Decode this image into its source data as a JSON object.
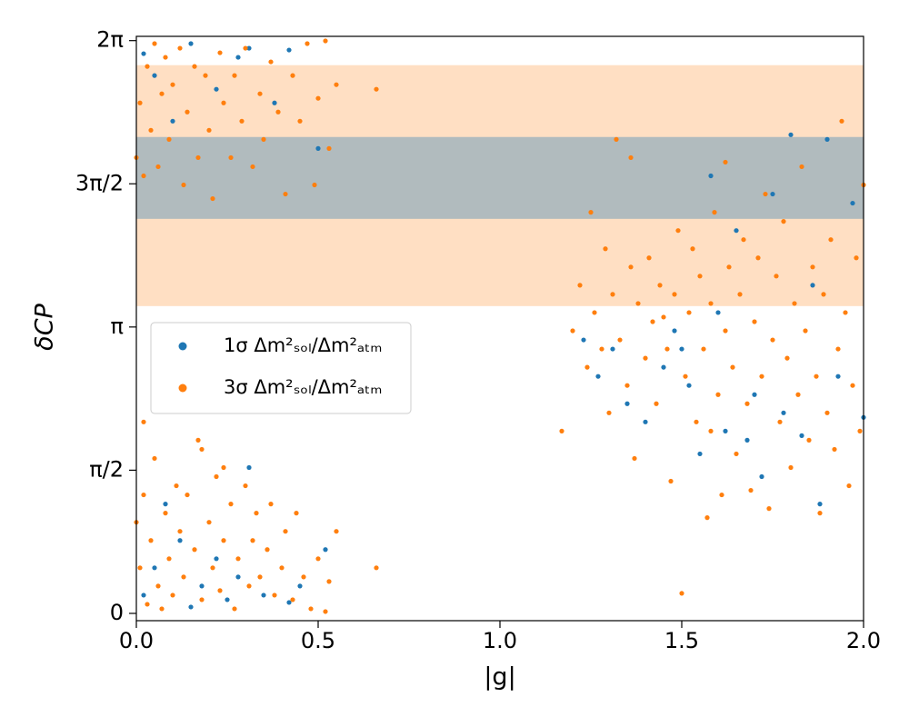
{
  "chart_data": {
    "type": "scatter",
    "xlabel": "|g|",
    "ylabel": "δCP",
    "xlim": [
      0,
      2
    ],
    "ylim": [
      -0.08,
      6.33
    ],
    "xticks": [
      {
        "value": 0,
        "label": "0.0"
      },
      0.5,
      {
        "value": 1,
        "label": "1.0"
      },
      1.5,
      {
        "value": 2,
        "label": "2.0"
      }
    ],
    "yticks": [
      0,
      {
        "value": 1.5708,
        "label": "π/2"
      },
      {
        "value": 3.1416,
        "label": "π"
      },
      {
        "value": 4.7124,
        "label": "3π/2"
      },
      {
        "value": 6.2832,
        "label": "2π"
      }
    ],
    "legend": "center left",
    "bands": [
      {
        "range": [
          3.371,
          6.014
        ],
        "color": "#ff7f0e",
        "alpha": 0.25
      },
      {
        "range": [
          4.328,
          5.226
        ],
        "color": "#1f77b4",
        "alpha": 0.35
      }
    ],
    "series": [
      {
        "name": "1σ Δm²ₛₒₗ/Δm²ₐₜₘ",
        "color": "#1f77b4",
        "x": [
          0.02,
          0.05,
          0.08,
          0.12,
          0.15,
          0.18,
          0.22,
          0.25,
          0.28,
          0.31,
          0.35,
          0.42,
          0.45,
          0.52,
          0.02,
          0.05,
          0.1,
          0.15,
          0.22,
          0.28,
          0.31,
          0.38,
          0.42,
          0.5,
          1.23,
          1.27,
          1.31,
          1.35,
          1.4,
          1.45,
          1.48,
          1.52,
          1.55,
          1.58,
          1.62,
          1.65,
          1.68,
          1.7,
          1.72,
          1.75,
          1.78,
          1.8,
          1.83,
          1.86,
          1.88,
          1.9,
          1.93,
          1.97,
          2.0,
          1.6,
          1.5
        ],
        "values": [
          0.2,
          0.5,
          1.2,
          0.8,
          0.07,
          0.3,
          0.6,
          0.15,
          0.4,
          1.6,
          0.2,
          0.12,
          0.3,
          0.7,
          6.14,
          5.9,
          5.4,
          6.25,
          5.75,
          6.1,
          6.2,
          5.6,
          6.18,
          5.1,
          3.0,
          2.6,
          2.9,
          2.3,
          2.1,
          2.7,
          3.1,
          2.5,
          1.75,
          4.8,
          2.0,
          4.2,
          1.9,
          2.4,
          1.5,
          4.6,
          2.2,
          5.25,
          1.95,
          3.6,
          1.2,
          5.2,
          2.6,
          4.5,
          2.15,
          3.3,
          2.9
        ]
      },
      {
        "name": "3σ Δm²ₛₒₗ/Δm²ₐₜₘ",
        "color": "#ff7f0e",
        "x": [
          0.0,
          0.01,
          0.02,
          0.03,
          0.04,
          0.05,
          0.06,
          0.07,
          0.08,
          0.09,
          0.1,
          0.11,
          0.12,
          0.13,
          0.14,
          0.16,
          0.17,
          0.18,
          0.2,
          0.21,
          0.22,
          0.23,
          0.24,
          0.26,
          0.27,
          0.28,
          0.3,
          0.31,
          0.32,
          0.33,
          0.34,
          0.36,
          0.37,
          0.38,
          0.4,
          0.41,
          0.43,
          0.44,
          0.46,
          0.48,
          0.5,
          0.52,
          0.53,
          0.55,
          0.66,
          0.02,
          0.18,
          0.24,
          0.0,
          0.01,
          0.02,
          0.03,
          0.04,
          0.05,
          0.06,
          0.07,
          0.08,
          0.09,
          0.1,
          0.12,
          0.13,
          0.14,
          0.16,
          0.17,
          0.19,
          0.2,
          0.21,
          0.23,
          0.24,
          0.26,
          0.27,
          0.29,
          0.3,
          0.32,
          0.34,
          0.35,
          0.37,
          0.39,
          0.41,
          0.43,
          0.45,
          0.47,
          0.49,
          0.5,
          0.52,
          0.53,
          0.55,
          0.66,
          1.17,
          1.2,
          1.22,
          1.24,
          1.25,
          1.26,
          1.28,
          1.29,
          1.3,
          1.31,
          1.32,
          1.33,
          1.35,
          1.36,
          1.37,
          1.38,
          1.4,
          1.41,
          1.42,
          1.43,
          1.44,
          1.46,
          1.47,
          1.48,
          1.49,
          1.5,
          1.51,
          1.52,
          1.53,
          1.54,
          1.55,
          1.56,
          1.57,
          1.58,
          1.59,
          1.6,
          1.61,
          1.62,
          1.63,
          1.64,
          1.65,
          1.66,
          1.67,
          1.68,
          1.69,
          1.7,
          1.71,
          1.72,
          1.73,
          1.74,
          1.75,
          1.76,
          1.77,
          1.78,
          1.79,
          1.8,
          1.81,
          1.82,
          1.83,
          1.84,
          1.85,
          1.86,
          1.87,
          1.88,
          1.89,
          1.9,
          1.91,
          1.92,
          1.93,
          1.94,
          1.95,
          1.96,
          1.97,
          1.98,
          1.99,
          2.0,
          1.36,
          1.62,
          1.45,
          1.58
        ],
        "values": [
          1.0,
          0.5,
          1.3,
          0.1,
          0.8,
          1.7,
          0.3,
          0.05,
          1.1,
          0.6,
          0.2,
          1.4,
          0.9,
          0.4,
          1.3,
          0.7,
          1.9,
          0.15,
          1.0,
          0.5,
          1.5,
          0.25,
          0.8,
          1.2,
          0.05,
          0.6,
          1.4,
          0.3,
          0.8,
          1.1,
          0.4,
          0.7,
          1.2,
          0.2,
          0.5,
          0.9,
          0.15,
          1.1,
          0.4,
          0.05,
          0.6,
          0.02,
          0.35,
          0.9,
          0.5,
          2.1,
          1.8,
          1.6,
          5.0,
          5.6,
          4.8,
          6.0,
          5.3,
          6.25,
          4.9,
          5.7,
          6.1,
          5.2,
          5.8,
          6.2,
          4.7,
          5.5,
          6.0,
          5.0,
          5.9,
          5.3,
          4.55,
          6.15,
          5.6,
          5.0,
          5.9,
          5.4,
          6.2,
          4.9,
          5.7,
          5.2,
          6.05,
          5.5,
          4.6,
          5.9,
          5.4,
          6.25,
          4.7,
          5.65,
          6.28,
          5.1,
          5.8,
          5.75,
          2.0,
          3.1,
          3.6,
          2.7,
          4.4,
          3.3,
          2.9,
          4.0,
          2.2,
          3.5,
          5.2,
          3.0,
          2.5,
          3.8,
          1.7,
          3.4,
          2.8,
          3.9,
          3.2,
          2.3,
          3.6,
          2.9,
          1.45,
          3.5,
          4.2,
          0.22,
          2.6,
          3.3,
          4.0,
          2.1,
          3.7,
          2.9,
          1.05,
          3.4,
          4.4,
          2.4,
          1.3,
          3.1,
          3.8,
          2.7,
          1.75,
          3.5,
          4.1,
          2.3,
          1.35,
          3.2,
          3.9,
          2.6,
          4.6,
          1.15,
          3.0,
          3.7,
          2.1,
          4.3,
          2.8,
          1.6,
          3.4,
          2.4,
          4.9,
          3.1,
          1.9,
          3.8,
          2.6,
          1.1,
          3.5,
          2.2,
          4.1,
          1.8,
          2.9,
          5.4,
          3.3,
          1.4,
          2.5,
          3.9,
          2.0,
          4.7,
          5.0,
          4.95,
          3.25,
          2.0
        ]
      }
    ]
  }
}
